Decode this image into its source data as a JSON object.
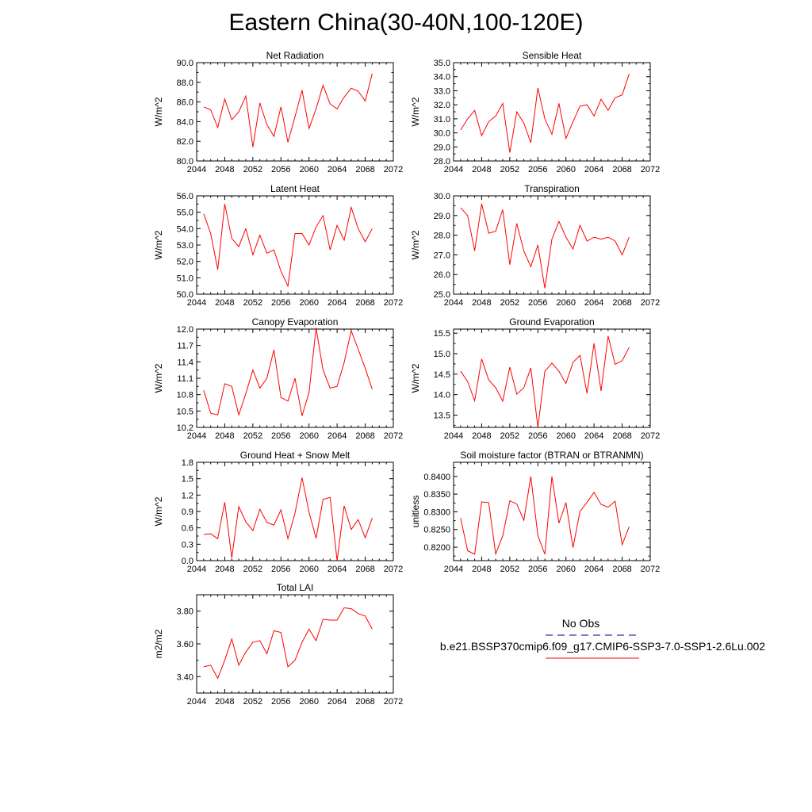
{
  "title": "Eastern China(30-40N,100-120E)",
  "legend": {
    "obs_label": "No Obs",
    "obs_color": "#3030a0",
    "case_label": "b.e21.BSSP370cmip6.f09_g17.CMIP6-SSP3-7.0-SSP1-2.6Lu.002",
    "case_color": "#ff0000"
  },
  "chart_data": [
    {
      "type": "line",
      "title": "Net Radiation",
      "ylabel": "W/m^2",
      "xlim": [
        2044,
        2072
      ],
      "xticks": [
        "2044",
        "2048",
        "2052",
        "2056",
        "2060",
        "2064",
        "2068",
        "2072"
      ],
      "ylim": [
        80.0,
        90.0
      ],
      "yticks": [
        "80.0",
        "82.0",
        "84.0",
        "86.0",
        "88.0",
        "90.0"
      ],
      "series": [
        {
          "color": "#ff0000",
          "x": [
            2045,
            2046,
            2047,
            2048,
            2049,
            2050,
            2051,
            2052,
            2053,
            2054,
            2055,
            2056,
            2057,
            2058,
            2059,
            2060,
            2061,
            2062,
            2063,
            2064,
            2065,
            2066,
            2067,
            2068,
            2069
          ],
          "y": [
            85.5,
            85.2,
            83.4,
            86.3,
            84.2,
            85.0,
            86.6,
            81.4,
            85.9,
            83.7,
            82.5,
            85.5,
            81.9,
            84.5,
            87.2,
            83.3,
            85.3,
            87.7,
            85.8,
            85.3,
            86.5,
            87.4,
            87.1,
            86.1,
            88.9
          ]
        }
      ]
    },
    {
      "type": "line",
      "title": "Sensible Heat",
      "ylabel": "W/m^2",
      "xlim": [
        2044,
        2072
      ],
      "xticks": [
        "2044",
        "2048",
        "2052",
        "2056",
        "2060",
        "2064",
        "2068",
        "2072"
      ],
      "ylim": [
        28.0,
        35.0
      ],
      "yticks": [
        "28.0",
        "29.0",
        "30.0",
        "31.0",
        "32.0",
        "33.0",
        "34.0",
        "35.0"
      ],
      "series": [
        {
          "color": "#ff0000",
          "x": [
            2045,
            2046,
            2047,
            2048,
            2049,
            2050,
            2051,
            2052,
            2053,
            2054,
            2055,
            2056,
            2057,
            2058,
            2059,
            2060,
            2061,
            2062,
            2063,
            2064,
            2065,
            2066,
            2067,
            2068,
            2069
          ],
          "y": [
            30.2,
            31.0,
            31.6,
            29.8,
            30.8,
            31.2,
            32.1,
            28.6,
            31.5,
            30.7,
            29.3,
            33.2,
            31.0,
            29.9,
            32.1,
            29.6,
            30.8,
            31.9,
            32.0,
            31.2,
            32.4,
            31.6,
            32.5,
            32.7,
            34.2
          ]
        }
      ]
    },
    {
      "type": "line",
      "title": "Latent Heat",
      "ylabel": "W/m^2",
      "xlim": [
        2044,
        2072
      ],
      "xticks": [
        "2044",
        "2048",
        "2052",
        "2056",
        "2060",
        "2064",
        "2068",
        "2072"
      ],
      "ylim": [
        50.0,
        56.0
      ],
      "yticks": [
        "50.0",
        "51.0",
        "52.0",
        "53.0",
        "54.0",
        "55.0",
        "56.0"
      ],
      "series": [
        {
          "color": "#ff0000",
          "x": [
            2045,
            2046,
            2047,
            2048,
            2049,
            2050,
            2051,
            2052,
            2053,
            2054,
            2055,
            2056,
            2057,
            2058,
            2059,
            2060,
            2061,
            2062,
            2063,
            2064,
            2065,
            2066,
            2067,
            2068,
            2069
          ],
          "y": [
            54.9,
            53.7,
            51.5,
            55.5,
            53.4,
            52.9,
            54.0,
            52.4,
            53.6,
            52.5,
            52.7,
            51.4,
            50.5,
            53.7,
            53.7,
            53.0,
            54.1,
            54.8,
            52.7,
            54.2,
            53.3,
            55.3,
            54.0,
            53.2,
            54.0
          ]
        }
      ]
    },
    {
      "type": "line",
      "title": "Transpiration",
      "ylabel": "W/m^2",
      "xlim": [
        2044,
        2072
      ],
      "xticks": [
        "2044",
        "2048",
        "2052",
        "2056",
        "2060",
        "2064",
        "2068",
        "2072"
      ],
      "ylim": [
        25.0,
        30.0
      ],
      "yticks": [
        "25.0",
        "26.0",
        "27.0",
        "28.0",
        "29.0",
        "30.0"
      ],
      "series": [
        {
          "color": "#ff0000",
          "x": [
            2045,
            2046,
            2047,
            2048,
            2049,
            2050,
            2051,
            2052,
            2053,
            2054,
            2055,
            2056,
            2057,
            2058,
            2059,
            2060,
            2061,
            2062,
            2063,
            2064,
            2065,
            2066,
            2067,
            2068,
            2069
          ],
          "y": [
            29.4,
            29.0,
            27.2,
            29.6,
            28.1,
            28.2,
            29.3,
            26.5,
            28.6,
            27.2,
            26.4,
            27.5,
            25.3,
            27.8,
            28.7,
            27.9,
            27.3,
            28.5,
            27.7,
            27.9,
            27.8,
            27.9,
            27.7,
            27.0,
            27.9
          ]
        }
      ]
    },
    {
      "type": "line",
      "title": "Canopy Evaporation",
      "ylabel": "W/m^2",
      "xlim": [
        2044,
        2072
      ],
      "xticks": [
        "2044",
        "2048",
        "2052",
        "2056",
        "2060",
        "2064",
        "2068",
        "2072"
      ],
      "ylim": [
        10.2,
        12.0
      ],
      "yticks": [
        "10.2",
        "10.5",
        "10.8",
        "11.1",
        "11.4",
        "11.7",
        "12.0"
      ],
      "series": [
        {
          "color": "#ff0000",
          "x": [
            2045,
            2046,
            2047,
            2048,
            2049,
            2050,
            2051,
            2052,
            2053,
            2054,
            2055,
            2056,
            2057,
            2058,
            2059,
            2060,
            2061,
            2062,
            2063,
            2064,
            2065,
            2066,
            2067,
            2068,
            2069
          ],
          "y": [
            10.88,
            10.46,
            10.43,
            11.0,
            10.95,
            10.43,
            10.82,
            11.25,
            10.92,
            11.1,
            11.62,
            10.75,
            10.68,
            11.1,
            10.41,
            10.84,
            12.02,
            11.25,
            10.92,
            10.95,
            11.39,
            11.97,
            11.63,
            11.28,
            10.9
          ]
        }
      ]
    },
    {
      "type": "line",
      "title": "Ground Evaporation",
      "ylabel": "W/m^2",
      "xlim": [
        2044,
        2072
      ],
      "xticks": [
        "2044",
        "2048",
        "2052",
        "2056",
        "2060",
        "2064",
        "2068",
        "2072"
      ],
      "ylim": [
        13.2,
        15.6
      ],
      "yticks": [
        "13.5",
        "14.0",
        "14.5",
        "15.0",
        "15.5"
      ],
      "series": [
        {
          "color": "#ff0000",
          "x": [
            2045,
            2046,
            2047,
            2048,
            2049,
            2050,
            2051,
            2052,
            2053,
            2054,
            2055,
            2056,
            2057,
            2058,
            2059,
            2060,
            2061,
            2062,
            2063,
            2064,
            2065,
            2066,
            2067,
            2068,
            2069
          ],
          "y": [
            14.57,
            14.32,
            13.85,
            14.87,
            14.36,
            14.17,
            13.84,
            14.67,
            14.01,
            14.17,
            14.65,
            13.2,
            14.57,
            14.77,
            14.57,
            14.27,
            14.79,
            14.96,
            14.03,
            15.25,
            14.09,
            15.43,
            14.74,
            14.83,
            15.15
          ]
        }
      ]
    },
    {
      "type": "line",
      "title": "Ground Heat + Snow Melt",
      "ylabel": "W/m^2",
      "xlim": [
        2044,
        2072
      ],
      "xticks": [
        "2044",
        "2048",
        "2052",
        "2056",
        "2060",
        "2064",
        "2068",
        "2072"
      ],
      "ylim": [
        0.0,
        1.8
      ],
      "yticks": [
        "0.0",
        "0.3",
        "0.6",
        "0.9",
        "1.2",
        "1.5",
        "1.8"
      ],
      "series": [
        {
          "color": "#ff0000",
          "x": [
            2045,
            2046,
            2047,
            2048,
            2049,
            2050,
            2051,
            2052,
            2053,
            2054,
            2055,
            2056,
            2057,
            2058,
            2059,
            2060,
            2061,
            2062,
            2063,
            2064,
            2065,
            2066,
            2067,
            2068,
            2069
          ],
          "y": [
            0.48,
            0.49,
            0.4,
            1.07,
            0.05,
            0.99,
            0.71,
            0.55,
            0.94,
            0.7,
            0.65,
            0.93,
            0.4,
            0.87,
            1.52,
            0.89,
            0.41,
            1.12,
            1.16,
            0.0,
            1.0,
            0.57,
            0.75,
            0.42,
            0.78
          ]
        }
      ]
    },
    {
      "type": "line",
      "title": "Soil moisture factor (BTRAN or BTRANMN)",
      "ylabel": "unitless",
      "xlim": [
        2044,
        2072
      ],
      "xticks": [
        "2044",
        "2048",
        "2052",
        "2056",
        "2060",
        "2064",
        "2068",
        "2072"
      ],
      "ylim": [
        0.8162,
        0.844
      ],
      "yticks": [
        "0.8200",
        "0.8250",
        "0.8300",
        "0.8350",
        "0.8400"
      ],
      "series": [
        {
          "color": "#ff0000",
          "x": [
            2045,
            2046,
            2047,
            2048,
            2049,
            2050,
            2051,
            2052,
            2053,
            2054,
            2055,
            2056,
            2057,
            2058,
            2059,
            2060,
            2061,
            2062,
            2063,
            2064,
            2065,
            2066,
            2067,
            2068,
            2069
          ],
          "y": [
            0.8282,
            0.819,
            0.818,
            0.8328,
            0.8326,
            0.8181,
            0.8232,
            0.8331,
            0.8322,
            0.8276,
            0.84,
            0.8233,
            0.818,
            0.84,
            0.8268,
            0.8326,
            0.8199,
            0.8301,
            0.8327,
            0.8355,
            0.8321,
            0.8313,
            0.833,
            0.8207,
            0.8258
          ]
        }
      ]
    },
    {
      "type": "line",
      "title": "Total LAI",
      "ylabel": "m2/m2",
      "xlim": [
        2044,
        2072
      ],
      "xticks": [
        "2044",
        "2048",
        "2052",
        "2056",
        "2060",
        "2064",
        "2068",
        "2072"
      ],
      "ylim": [
        3.3,
        3.9
      ],
      "yticks": [
        "3.40",
        "3.60",
        "3.80"
      ],
      "series": [
        {
          "color": "#ff0000",
          "x": [
            2045,
            2046,
            2047,
            2048,
            2049,
            2050,
            2051,
            2052,
            2053,
            2054,
            2055,
            2056,
            2057,
            2058,
            2059,
            2060,
            2061,
            2062,
            2063,
            2064,
            2065,
            2066,
            2067,
            2068,
            2069
          ],
          "y": [
            3.46,
            3.47,
            3.39,
            3.5,
            3.63,
            3.47,
            3.55,
            3.61,
            3.62,
            3.54,
            3.68,
            3.67,
            3.46,
            3.5,
            3.61,
            3.69,
            3.62,
            3.75,
            3.745,
            3.745,
            3.82,
            3.815,
            3.785,
            3.77,
            3.69
          ]
        }
      ]
    }
  ]
}
